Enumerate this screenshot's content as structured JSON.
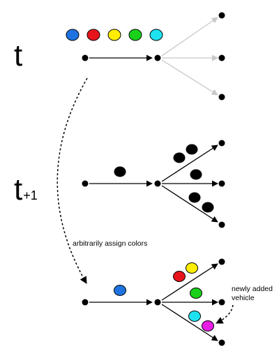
{
  "labels": {
    "time_t": "t",
    "time_t1_main": "t",
    "time_t1_sub": "+1",
    "assign_note": "arbitrarily assign colors",
    "new_vehicle_line1": "newly added",
    "new_vehicle_line2": "vehicle"
  },
  "colors": {
    "blue": "#1f73e0",
    "red": "#e8141c",
    "yellow": "#ffee00",
    "green": "#19d11a",
    "cyan": "#1ee2f0",
    "magenta": "#e61ee6",
    "node": "#000000",
    "faded_edge": "#c8c8c8"
  },
  "legend_colors": [
    "blue",
    "red",
    "yellow",
    "green",
    "cyan"
  ]
}
